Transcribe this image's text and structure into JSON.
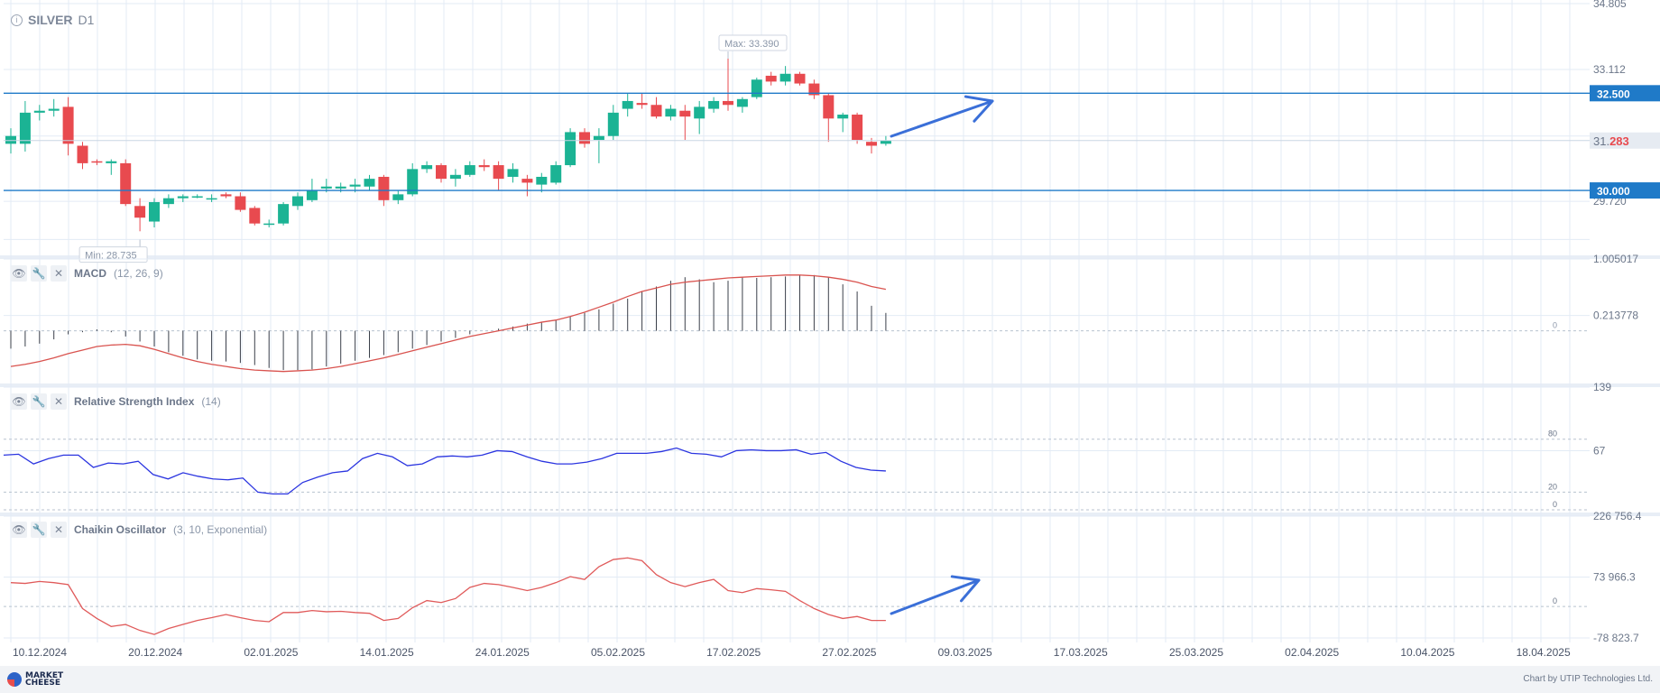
{
  "main": {
    "symbol": "SILVER",
    "timeframe": "D1",
    "price_ticks": [
      "34.805",
      "33.112",
      "29.720"
    ],
    "max_label": "Max: 33.390",
    "min_label": "Min: 28.735",
    "current_price_prefix": "31.",
    "current_price_suffix": "283",
    "levels": [
      "32.500",
      "30.000"
    ]
  },
  "macd": {
    "name": "MACD",
    "params": "(12, 26, 9)",
    "ticks": [
      "1.005017",
      "0.213778",
      "0"
    ]
  },
  "rsi": {
    "name": "Relative Strength Index",
    "params": "(14)",
    "ticks": [
      "139",
      "67",
      "80",
      "20",
      "0"
    ]
  },
  "chaikin": {
    "name": "Chaikin Oscillator",
    "params": "(3, 10, Exponential)",
    "ticks": [
      "226 756.4",
      "73 966.3",
      "0",
      "-78 823.7"
    ]
  },
  "x_axis": [
    "10.12.2024",
    "20.12.2024",
    "02.01.2025",
    "14.01.2025",
    "24.01.2025",
    "05.02.2025",
    "17.02.2025",
    "27.02.2025",
    "09.03.2025",
    "17.03.2025",
    "25.03.2025",
    "02.04.2025",
    "10.04.2025",
    "18.04.2025"
  ],
  "footer": {
    "logo_line1": "MARKET",
    "logo_line2": "CHEESE",
    "credit": "Chart by UTIP Technologies Ltd."
  },
  "colors": {
    "bull": "#1bb394",
    "bear": "#e84a4f",
    "level": "#1f7ac8",
    "macd_signal": "#d9534f",
    "rsi": "#2b35e0",
    "chaikin": "#e05a5a",
    "arrow": "#3a6fd8",
    "grid": "#e3ebf5"
  },
  "chart_data": [
    {
      "type": "candlestick",
      "title": "SILVER D1",
      "ylim": [
        28.4,
        34.805
      ],
      "levels": [
        32.5,
        30.0
      ],
      "max": 33.39,
      "min": 28.735,
      "last": 31.283,
      "candles": [
        {
          "o": 31.2,
          "h": 31.6,
          "l": 30.95,
          "c": 31.4
        },
        {
          "o": 31.2,
          "h": 32.3,
          "l": 31.0,
          "c": 32.0
        },
        {
          "o": 32.0,
          "h": 32.2,
          "l": 31.8,
          "c": 32.05
        },
        {
          "o": 32.05,
          "h": 32.35,
          "l": 31.9,
          "c": 32.1
        },
        {
          "o": 32.15,
          "h": 32.4,
          "l": 30.9,
          "c": 31.2
        },
        {
          "o": 31.15,
          "h": 31.25,
          "l": 30.55,
          "c": 30.7
        },
        {
          "o": 30.75,
          "h": 30.8,
          "l": 30.65,
          "c": 30.72
        },
        {
          "o": 30.7,
          "h": 30.8,
          "l": 30.4,
          "c": 30.75
        },
        {
          "o": 30.7,
          "h": 30.8,
          "l": 29.6,
          "c": 29.65
        },
        {
          "o": 29.6,
          "h": 29.8,
          "l": 28.95,
          "c": 29.3
        },
        {
          "o": 29.2,
          "h": 29.8,
          "l": 29.05,
          "c": 29.7
        },
        {
          "o": 29.65,
          "h": 29.9,
          "l": 29.55,
          "c": 29.8
        },
        {
          "o": 29.8,
          "h": 29.9,
          "l": 29.7,
          "c": 29.85
        },
        {
          "o": 29.85,
          "h": 29.9,
          "l": 29.8,
          "c": 29.85
        },
        {
          "o": 29.8,
          "h": 29.9,
          "l": 29.7,
          "c": 29.8
        },
        {
          "o": 29.9,
          "h": 29.95,
          "l": 29.8,
          "c": 29.85
        },
        {
          "o": 29.85,
          "h": 29.95,
          "l": 29.45,
          "c": 29.5
        },
        {
          "o": 29.55,
          "h": 29.6,
          "l": 29.1,
          "c": 29.15
        },
        {
          "o": 29.15,
          "h": 29.25,
          "l": 29.05,
          "c": 29.15
        },
        {
          "o": 29.15,
          "h": 29.7,
          "l": 29.1,
          "c": 29.65
        },
        {
          "o": 29.6,
          "h": 29.95,
          "l": 29.5,
          "c": 29.85
        },
        {
          "o": 29.75,
          "h": 30.3,
          "l": 29.7,
          "c": 30.0
        },
        {
          "o": 30.05,
          "h": 30.3,
          "l": 29.95,
          "c": 30.1
        },
        {
          "o": 30.05,
          "h": 30.2,
          "l": 29.95,
          "c": 30.1
        },
        {
          "o": 30.1,
          "h": 30.3,
          "l": 29.95,
          "c": 30.15
        },
        {
          "o": 30.1,
          "h": 30.4,
          "l": 30.0,
          "c": 30.3
        },
        {
          "o": 30.35,
          "h": 30.4,
          "l": 29.6,
          "c": 29.75
        },
        {
          "o": 29.75,
          "h": 30.0,
          "l": 29.65,
          "c": 29.9
        },
        {
          "o": 29.9,
          "h": 30.7,
          "l": 29.85,
          "c": 30.55
        },
        {
          "o": 30.55,
          "h": 30.75,
          "l": 30.45,
          "c": 30.65
        },
        {
          "o": 30.65,
          "h": 30.7,
          "l": 30.2,
          "c": 30.3
        },
        {
          "o": 30.3,
          "h": 30.55,
          "l": 30.1,
          "c": 30.4
        },
        {
          "o": 30.4,
          "h": 30.75,
          "l": 30.35,
          "c": 30.65
        },
        {
          "o": 30.65,
          "h": 30.8,
          "l": 30.5,
          "c": 30.6
        },
        {
          "o": 30.65,
          "h": 30.75,
          "l": 30.0,
          "c": 30.3
        },
        {
          "o": 30.35,
          "h": 30.7,
          "l": 30.2,
          "c": 30.55
        },
        {
          "o": 30.3,
          "h": 30.4,
          "l": 29.85,
          "c": 30.2
        },
        {
          "o": 30.15,
          "h": 30.45,
          "l": 29.95,
          "c": 30.35
        },
        {
          "o": 30.2,
          "h": 30.75,
          "l": 30.15,
          "c": 30.65
        },
        {
          "o": 30.65,
          "h": 31.6,
          "l": 30.6,
          "c": 31.5
        },
        {
          "o": 31.5,
          "h": 31.6,
          "l": 31.1,
          "c": 31.2
        },
        {
          "o": 31.3,
          "h": 31.6,
          "l": 30.7,
          "c": 31.4
        },
        {
          "o": 31.4,
          "h": 32.2,
          "l": 31.3,
          "c": 32.0
        },
        {
          "o": 32.1,
          "h": 32.5,
          "l": 31.9,
          "c": 32.3
        },
        {
          "o": 32.25,
          "h": 32.5,
          "l": 32.1,
          "c": 32.2
        },
        {
          "o": 32.2,
          "h": 32.4,
          "l": 31.85,
          "c": 31.9
        },
        {
          "o": 31.9,
          "h": 32.2,
          "l": 31.8,
          "c": 32.1
        },
        {
          "o": 32.05,
          "h": 32.2,
          "l": 31.3,
          "c": 31.9
        },
        {
          "o": 31.85,
          "h": 32.3,
          "l": 31.45,
          "c": 32.15
        },
        {
          "o": 32.1,
          "h": 32.4,
          "l": 32.0,
          "c": 32.3
        },
        {
          "o": 32.3,
          "h": 33.39,
          "l": 32.05,
          "c": 32.2
        },
        {
          "o": 32.15,
          "h": 32.4,
          "l": 32.0,
          "c": 32.35
        },
        {
          "o": 32.4,
          "h": 32.9,
          "l": 32.35,
          "c": 32.85
        },
        {
          "o": 32.95,
          "h": 33.05,
          "l": 32.7,
          "c": 32.8
        },
        {
          "o": 32.8,
          "h": 33.2,
          "l": 32.7,
          "c": 33.0
        },
        {
          "o": 33.0,
          "h": 33.05,
          "l": 32.7,
          "c": 32.75
        },
        {
          "o": 32.75,
          "h": 32.85,
          "l": 32.35,
          "c": 32.45
        },
        {
          "o": 32.45,
          "h": 32.5,
          "l": 31.25,
          "c": 31.85
        },
        {
          "o": 31.85,
          "h": 32.0,
          "l": 31.5,
          "c": 31.95
        },
        {
          "o": 31.95,
          "h": 32.0,
          "l": 31.2,
          "c": 31.3
        },
        {
          "o": 31.25,
          "h": 31.35,
          "l": 30.95,
          "c": 31.15
        },
        {
          "o": 31.2,
          "h": 31.4,
          "l": 31.15,
          "c": 31.28
        }
      ]
    },
    {
      "type": "bar",
      "title": "MACD (12, 26, 9)",
      "ylim": [
        -0.7,
        1.005017
      ],
      "histogram": [
        -0.25,
        -0.22,
        -0.18,
        -0.12,
        -0.05,
        -0.02,
        0.02,
        -0.02,
        -0.08,
        -0.15,
        -0.22,
        -0.3,
        -0.35,
        -0.4,
        -0.42,
        -0.43,
        -0.45,
        -0.48,
        -0.52,
        -0.55,
        -0.55,
        -0.54,
        -0.5,
        -0.46,
        -0.42,
        -0.38,
        -0.34,
        -0.3,
        -0.25,
        -0.2,
        -0.15,
        -0.1,
        -0.05,
        0.0,
        0.03,
        0.06,
        0.1,
        0.12,
        0.15,
        0.2,
        0.25,
        0.3,
        0.38,
        0.45,
        0.55,
        0.62,
        0.7,
        0.75,
        0.72,
        0.68,
        0.7,
        0.75,
        0.74,
        0.75,
        0.76,
        0.78,
        0.78,
        0.75,
        0.65,
        0.55,
        0.35,
        0.25
      ],
      "signal": [
        -0.5,
        -0.47,
        -0.43,
        -0.38,
        -0.32,
        -0.27,
        -0.22,
        -0.2,
        -0.19,
        -0.21,
        -0.26,
        -0.32,
        -0.38,
        -0.43,
        -0.47,
        -0.5,
        -0.53,
        -0.55,
        -0.56,
        -0.57,
        -0.56,
        -0.55,
        -0.53,
        -0.5,
        -0.46,
        -0.42,
        -0.38,
        -0.33,
        -0.28,
        -0.23,
        -0.18,
        -0.13,
        -0.08,
        -0.04,
        0.0,
        0.04,
        0.08,
        0.12,
        0.15,
        0.2,
        0.26,
        0.33,
        0.4,
        0.48,
        0.55,
        0.6,
        0.65,
        0.68,
        0.7,
        0.72,
        0.74,
        0.75,
        0.76,
        0.77,
        0.78,
        0.78,
        0.77,
        0.75,
        0.72,
        0.68,
        0.62,
        0.58
      ]
    },
    {
      "type": "line",
      "title": "Relative Strength Index (14)",
      "ylim": [
        0,
        139
      ],
      "levels": [
        80,
        20
      ],
      "values": [
        62,
        63,
        52,
        58,
        62,
        62,
        48,
        53,
        52,
        55,
        40,
        35,
        42,
        38,
        35,
        34,
        36,
        20,
        18,
        18,
        31,
        37,
        42,
        44,
        58,
        64,
        60,
        50,
        52,
        60,
        61,
        60,
        62,
        67,
        66,
        60,
        55,
        52,
        52,
        54,
        58,
        64,
        64,
        64,
        66,
        70,
        64,
        63,
        60,
        67,
        68,
        67,
        67,
        68,
        63,
        65,
        55,
        48,
        45,
        44
      ]
    },
    {
      "type": "line",
      "title": "Chaikin Oscillator (3, 10, Exponential)",
      "ylim": [
        -78823.7,
        226756.4
      ],
      "values": [
        60000,
        58000,
        63000,
        60000,
        55000,
        -5000,
        -30000,
        -50000,
        -45000,
        -60000,
        -70000,
        -55000,
        -45000,
        -35000,
        -28000,
        -20000,
        -28000,
        -35000,
        -38000,
        -15000,
        -15000,
        -10000,
        -13000,
        -12000,
        -15000,
        -17000,
        -35000,
        -30000,
        -3000,
        15000,
        10000,
        20000,
        48000,
        58000,
        55000,
        48000,
        40000,
        48000,
        60000,
        75000,
        68000,
        100000,
        118000,
        122000,
        115000,
        80000,
        60000,
        50000,
        60000,
        68000,
        40000,
        35000,
        45000,
        42000,
        38000,
        15000,
        -5000,
        -20000,
        -30000,
        -25000,
        -35000,
        -35000
      ]
    }
  ]
}
